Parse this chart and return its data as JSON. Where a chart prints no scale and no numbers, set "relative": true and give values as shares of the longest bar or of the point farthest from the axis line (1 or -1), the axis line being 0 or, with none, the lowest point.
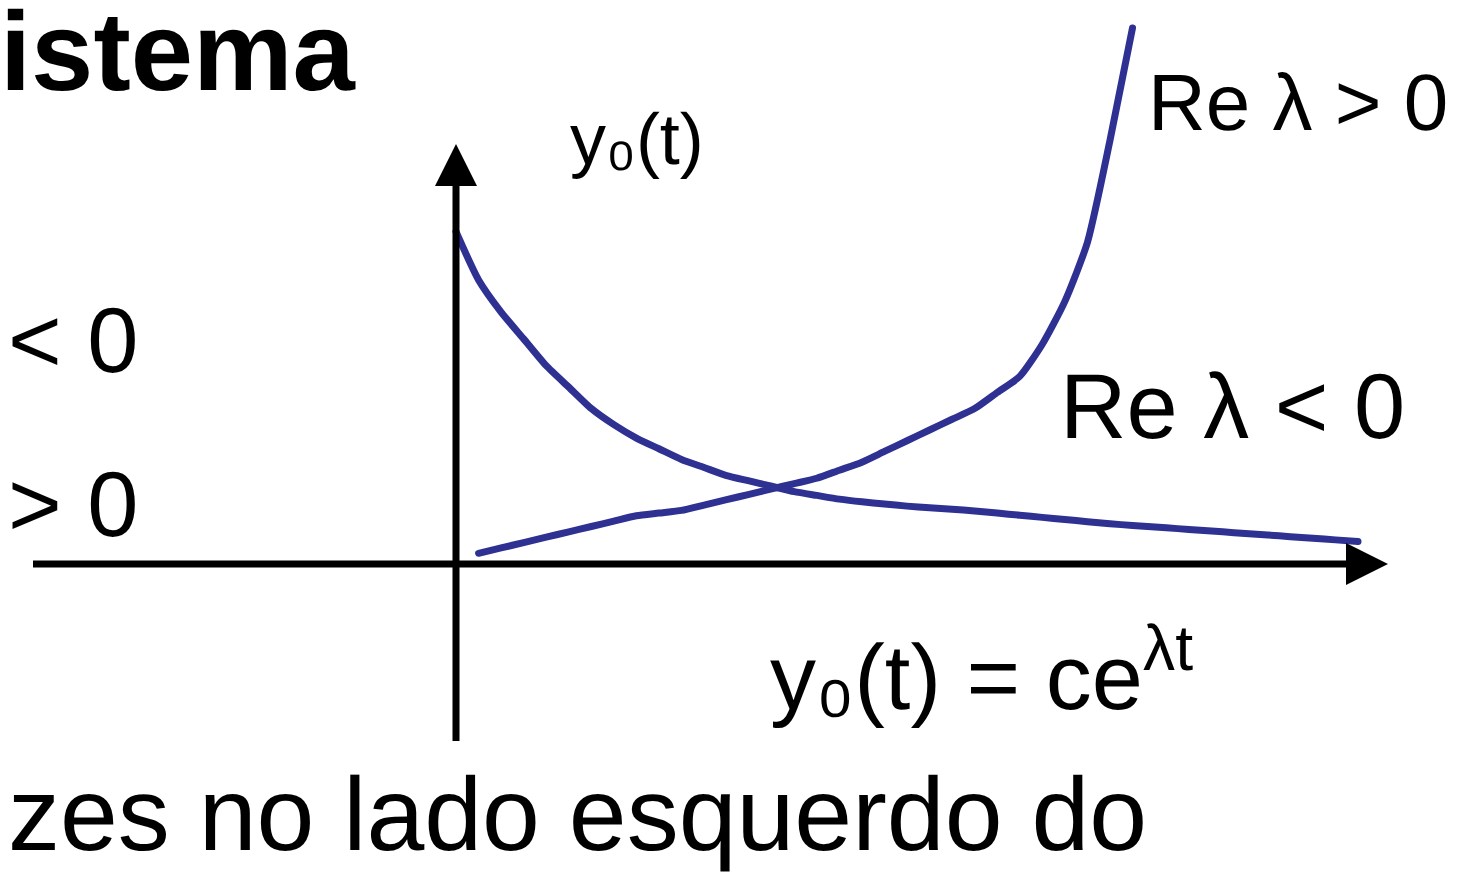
{
  "chart_data": {
    "type": "line",
    "title": "istema",
    "ylabel": "y₀(t)",
    "relative": true,
    "categories": [
      null,
      null,
      null,
      null,
      null,
      null,
      null,
      null,
      null,
      null,
      null,
      null,
      null,
      null,
      null,
      null,
      null,
      null,
      null,
      null,
      null,
      null,
      null,
      null,
      null,
      null,
      null,
      null,
      null,
      null,
      null,
      null,
      null,
      null,
      null,
      null,
      null,
      null,
      null,
      null,
      null
    ],
    "series": [
      {
        "name": "Re λ > 0",
        "color": "#2e3192",
        "values": [
          null,
          0.02,
          0.03,
          0.04,
          0.05,
          0.06,
          0.07,
          0.08,
          0.09,
          0.095,
          0.1,
          0.11,
          0.12,
          0.13,
          0.14,
          0.15,
          0.16,
          0.175,
          0.19,
          0.21,
          0.23,
          0.25,
          0.27,
          0.29,
          0.32,
          0.35,
          0.41,
          0.49,
          0.6,
          0.79,
          1,
          null,
          null,
          null,
          null,
          null,
          null,
          null,
          null,
          null,
          null
        ]
      },
      {
        "name": "Re λ < 0",
        "color": "#2e3192",
        "values": [
          0.62,
          0.53,
          0.47,
          0.42,
          0.37,
          0.33,
          0.29,
          0.26,
          0.235,
          0.215,
          0.195,
          0.18,
          0.165,
          0.155,
          0.145,
          0.135,
          0.128,
          0.121,
          0.116,
          0.112,
          0.108,
          0.105,
          0.102,
          0.099,
          0.095,
          0.091,
          0.087,
          0.083,
          0.079,
          0.075,
          0.072,
          0.069,
          0.066,
          0.063,
          0.06,
          0.057,
          0.054,
          0.051,
          0.048,
          0.045,
          0.042
        ]
      }
    ],
    "annotations": [
      "< 0",
      "> 0",
      "y₀(t) = ce$^{λt}$",
      "zes no lado esquerdo do"
    ]
  }
}
